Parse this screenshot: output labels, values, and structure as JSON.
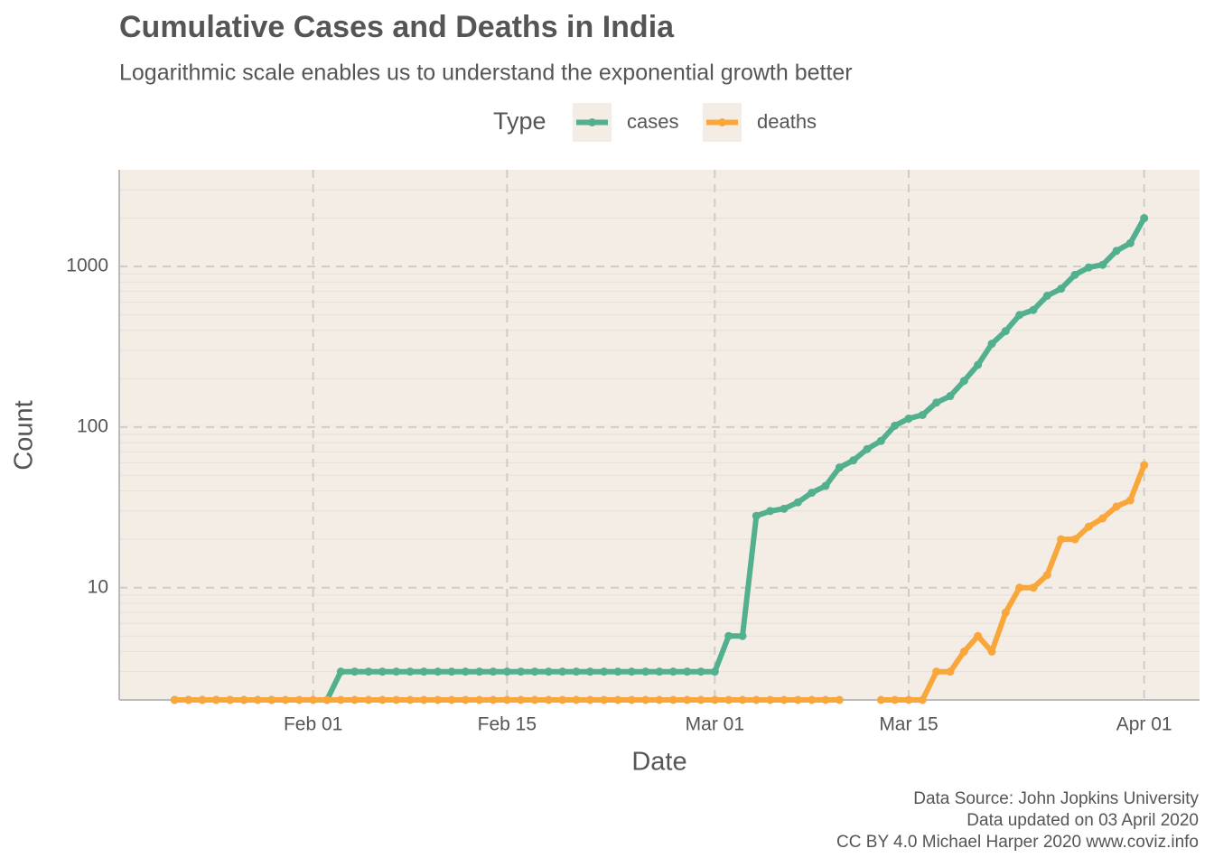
{
  "chart_data": {
    "type": "line",
    "title": "Cumulative Cases and Deaths in India",
    "subtitle": "Logarithmic scale enables us to understand the exponential growth better",
    "legend_title": "Type",
    "x_label": "Date",
    "y_label": "Count",
    "caption": [
      "Data Source: John Jopkins University",
      "Data updated on 03 April 2020",
      "CC BY 4.0 Michael Harper 2020 www.coviz.info"
    ],
    "log_y": true,
    "grid": true,
    "legend_position": "top",
    "x": [
      "Jan 22",
      "Jan 23",
      "Jan 24",
      "Jan 25",
      "Jan 26",
      "Jan 27",
      "Jan 28",
      "Jan 29",
      "Jan 30",
      "Jan 31",
      "Feb 01",
      "Feb 02",
      "Feb 03",
      "Feb 04",
      "Feb 05",
      "Feb 06",
      "Feb 07",
      "Feb 08",
      "Feb 09",
      "Feb 10",
      "Feb 11",
      "Feb 12",
      "Feb 13",
      "Feb 14",
      "Feb 15",
      "Feb 16",
      "Feb 17",
      "Feb 18",
      "Feb 19",
      "Feb 20",
      "Feb 21",
      "Feb 22",
      "Feb 23",
      "Feb 24",
      "Feb 25",
      "Feb 26",
      "Feb 27",
      "Feb 28",
      "Feb 29",
      "Mar 01",
      "Mar 02",
      "Mar 03",
      "Mar 04",
      "Mar 05",
      "Mar 06",
      "Mar 07",
      "Mar 08",
      "Mar 09",
      "Mar 10",
      "Mar 11",
      "Mar 12",
      "Mar 13",
      "Mar 14",
      "Mar 15",
      "Mar 16",
      "Mar 17",
      "Mar 18",
      "Mar 19",
      "Mar 20",
      "Mar 21",
      "Mar 22",
      "Mar 23",
      "Mar 24",
      "Mar 25",
      "Mar 26",
      "Mar 27",
      "Mar 28",
      "Mar 29",
      "Mar 30",
      "Mar 31",
      "Apr 01"
    ],
    "series": [
      {
        "name": "cases",
        "color": "#52b08f",
        "values": [
          0,
          0,
          0,
          0,
          0,
          0,
          0,
          0,
          null,
          null,
          null,
          2,
          3,
          3,
          3,
          3,
          3,
          3,
          3,
          3,
          3,
          3,
          3,
          3,
          3,
          3,
          3,
          3,
          3,
          3,
          3,
          3,
          3,
          3,
          3,
          3,
          3,
          3,
          3,
          3,
          5,
          5,
          28,
          30,
          31,
          34,
          39,
          43,
          56,
          62,
          73,
          82,
          102,
          113,
          119,
          142,
          156,
          194,
          244,
          330,
          396,
          499,
          536,
          657,
          727,
          887,
          987,
          1024,
          1251,
          1397,
          1998
        ]
      },
      {
        "name": "deaths",
        "color": "#f9a63a",
        "values": [
          0,
          0,
          0,
          0,
          0,
          0,
          0,
          0,
          0,
          0,
          0,
          0,
          0,
          0,
          0,
          0,
          0,
          0,
          0,
          0,
          0,
          0,
          0,
          0,
          0,
          0,
          0,
          0,
          0,
          0,
          0,
          0,
          0,
          0,
          0,
          0,
          0,
          0,
          0,
          0,
          0,
          0,
          0,
          0,
          0,
          0,
          0,
          0,
          0,
          null,
          null,
          2,
          2,
          2,
          2,
          3,
          3,
          4,
          5,
          4,
          7,
          10,
          10,
          12,
          20,
          20,
          24,
          27,
          32,
          35,
          58
        ]
      }
    ],
    "xlim": [
      "Jan 18",
      "Apr 05"
    ],
    "xticks": [
      "Feb 01",
      "Feb 15",
      "Mar 01",
      "Mar 15",
      "Apr 01"
    ],
    "ylim": [
      2,
      4000
    ],
    "yticks": [
      10,
      100,
      1000
    ]
  }
}
